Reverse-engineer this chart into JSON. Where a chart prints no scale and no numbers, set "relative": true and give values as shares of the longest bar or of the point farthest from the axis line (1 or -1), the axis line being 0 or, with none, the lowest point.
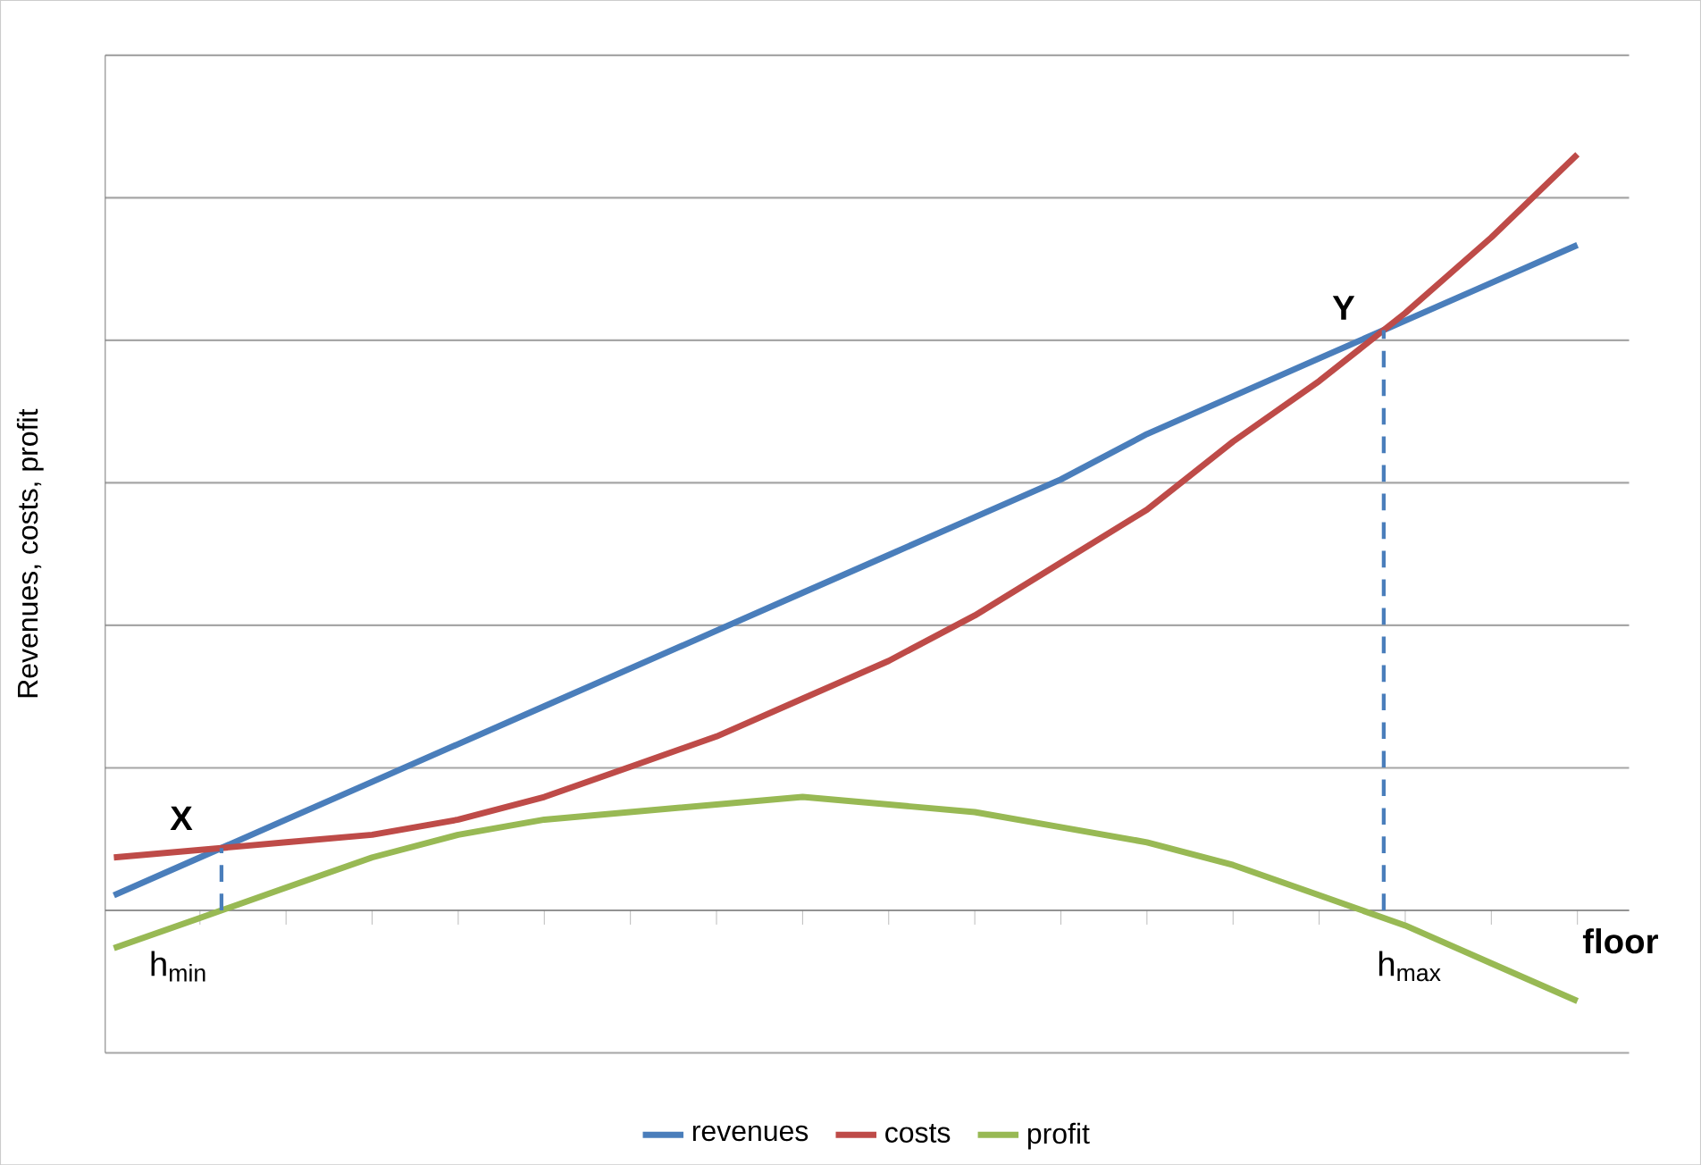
{
  "chart_data": {
    "type": "line",
    "relative": true,
    "ylabel": "Revenues, costs, profit",
    "categories": [
      null,
      null,
      null,
      null,
      null,
      null,
      null,
      null,
      null,
      null,
      null,
      null,
      null,
      null,
      null,
      null,
      null,
      null
    ],
    "series": [
      {
        "name": "revenues",
        "color": "#4a7ebb",
        "values": [
          0.02,
          0.07,
          0.12,
          0.17,
          0.22,
          0.27,
          0.32,
          0.37,
          0.42,
          0.47,
          0.52,
          0.57,
          0.63,
          0.68,
          0.73,
          0.78,
          0.83,
          0.88
        ]
      },
      {
        "name": "costs",
        "color": "#be4b48",
        "values": [
          0.07,
          0.08,
          0.09,
          0.1,
          0.12,
          0.15,
          0.19,
          0.23,
          0.28,
          0.33,
          0.39,
          0.46,
          0.53,
          0.62,
          0.7,
          0.79,
          0.89,
          1
        ]
      },
      {
        "name": "profit",
        "color": "#98b954",
        "values": [
          -0.05,
          -0.01,
          0.03,
          0.07,
          0.1,
          0.12,
          0.13,
          0.14,
          0.15,
          0.14,
          0.13,
          0.11,
          0.09,
          0.06,
          0.02,
          -0.02,
          -0.07,
          -0.12
        ]
      }
    ],
    "annotations": [
      "X",
      "Y",
      "h$_{min}$",
      "h$_{max}$",
      "floor"
    ],
    "grid": "y",
    "legend": "bottom",
    "marker": "none"
  }
}
